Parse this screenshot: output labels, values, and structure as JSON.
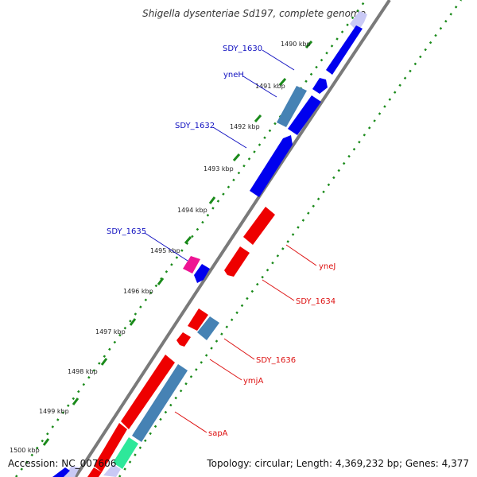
{
  "title": "Shigella dysenteriae Sd197, complete genome",
  "accession": "Accession: NC_007606",
  "topology": "Topology: circular; Length: 4,369,232 bp; Genes: 4,377",
  "colors": {
    "backbone": "#808080",
    "tick": "#1a8a1a",
    "forward_gene": "#0000ee",
    "forward_gene_alt": "#4682b4",
    "reverse_gene": "#ee0000",
    "reverse_gene_alt": "#4682b4",
    "pink": "#ee1493",
    "mint": "#2ee89a",
    "lavender": "#c9c9f5",
    "forward_label": "#1010c0",
    "reverse_label": "#dd1010"
  },
  "ticks": [
    "1490 kbp",
    "1491 kbp",
    "1492 kbp",
    "1493 kbp",
    "1494 kbp",
    "1495 kbp",
    "1496 kbp",
    "1497 kbp",
    "1498 kbp",
    "1499 kbp",
    "1500 kbp"
  ],
  "forward_labels": [
    "SDY_1630",
    "yneH",
    "SDY_1632",
    "SDY_1635"
  ],
  "reverse_labels": [
    "yneJ",
    "SDY_1634",
    "SDY_1636",
    "ymjA",
    "sapA"
  ]
}
